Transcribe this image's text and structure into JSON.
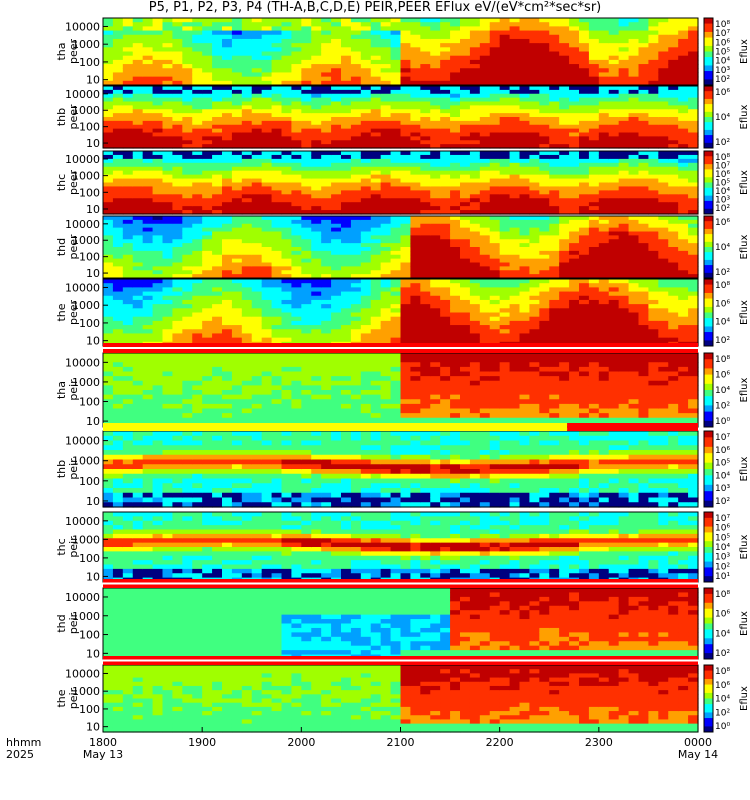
{
  "chart_data": {
    "type": "heatmap",
    "title": "P5, P1, P2, P3, P4 (TH-A,B,C,D,E) PEIR,PEER EFlux eV/(eV*cm²*sec*sr)",
    "x_ticks": [
      "1800",
      "1900",
      "2000",
      "2100",
      "2200",
      "2300",
      "0000"
    ],
    "x_tick_dates": [
      "May 13",
      "",
      "",
      "",
      "",
      "",
      "May 14"
    ],
    "x_range": [
      "1800",
      "0000"
    ],
    "x_axis_label": [
      "hhmm",
      "2025"
    ],
    "colorbar_label": "Eflux",
    "y_scale": "log",
    "y_range": [
      5,
      30000
    ],
    "colormap": [
      "#000080",
      "#0000ff",
      "#00a0ff",
      "#00ffff",
      "#40ff80",
      "#a0ff00",
      "#ffff00",
      "#ffa000",
      "#ff3000",
      "#c00000"
    ],
    "panels": [
      {
        "ylabel": [
          "tha",
          "peer"
        ],
        "yticks": [
          "10000",
          "1000",
          "100",
          "10"
        ],
        "cbar_ticks": [
          "10⁸",
          "10⁷",
          "10⁶",
          "10⁵",
          "10⁴",
          "10³",
          "10²"
        ],
        "species": "electron",
        "top_status": null
      },
      {
        "ylabel": [
          "thb",
          "peer"
        ],
        "yticks": [
          "10000",
          "1000",
          "100",
          "10"
        ],
        "cbar_ticks": [
          "10⁶",
          "10⁴",
          "10²"
        ],
        "species": "electron",
        "top_status": null
      },
      {
        "ylabel": [
          "thc",
          "peer"
        ],
        "yticks": [
          "10000",
          "1000",
          "100",
          "10"
        ],
        "cbar_ticks": [
          "10⁸",
          "10⁷",
          "10⁶",
          "10⁵",
          "10⁴",
          "10³",
          "10²"
        ],
        "species": "electron",
        "top_status": null
      },
      {
        "ylabel": [
          "thd",
          "peer"
        ],
        "yticks": [
          "10000",
          "1000",
          "100",
          "10"
        ],
        "cbar_ticks": [
          "10⁶",
          "10⁴",
          "10²"
        ],
        "species": "electron",
        "top_status": null
      },
      {
        "ylabel": [
          "the",
          "peer"
        ],
        "yticks": [
          "10000",
          "1000",
          "100",
          "10"
        ],
        "cbar_ticks": [
          "10⁸",
          "10⁶",
          "10⁴",
          "10²"
        ],
        "species": "electron",
        "top_status": null
      },
      {
        "ylabel": [
          "tha",
          "peir"
        ],
        "yticks": [
          "10000",
          "1000",
          "100",
          "10"
        ],
        "cbar_ticks": [
          "10⁸",
          "10⁶",
          "10⁴",
          "10²",
          "10⁰"
        ],
        "species": "ion",
        "top_status": "red"
      },
      {
        "ylabel": [
          "thb",
          "peir"
        ],
        "yticks": [
          "10000",
          "1000",
          "100",
          "10"
        ],
        "cbar_ticks": [
          "10⁷",
          "10⁶",
          "10⁵",
          "10⁴",
          "10³",
          "10²"
        ],
        "species": "ion",
        "top_status": "yellow-red"
      },
      {
        "ylabel": [
          "thc",
          "peir"
        ],
        "yticks": [
          "10000",
          "1000",
          "100",
          "10"
        ],
        "cbar_ticks": [
          "10⁷",
          "10⁶",
          "10⁵",
          "10⁴",
          "10³",
          "10²",
          "10¹"
        ],
        "species": "ion",
        "top_status": null
      },
      {
        "ylabel": [
          "thd",
          "peir"
        ],
        "yticks": [
          "10000",
          "1000",
          "100",
          "10"
        ],
        "cbar_ticks": [
          "10⁸",
          "10⁶",
          "10⁴",
          "10²"
        ],
        "species": "ion",
        "top_status": "red"
      },
      {
        "ylabel": [
          "the",
          "peir"
        ],
        "yticks": [
          "10000",
          "1000",
          "100",
          "10"
        ],
        "cbar_ticks": [
          "10⁸",
          "10⁶",
          "10⁴",
          "10²",
          "10⁰"
        ],
        "species": "ion",
        "top_status": "red"
      }
    ]
  }
}
